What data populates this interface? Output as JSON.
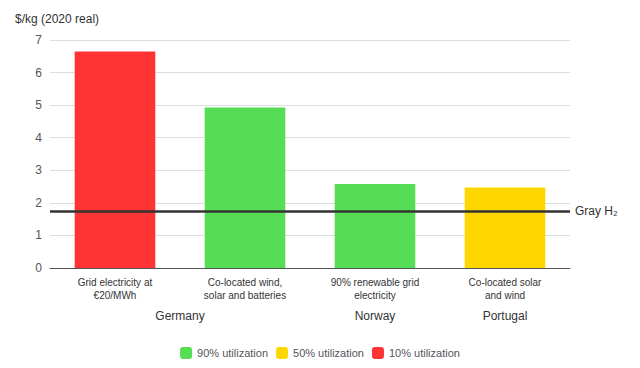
{
  "chart_data": {
    "type": "bar",
    "ylabel": "$/kg (2020 real)",
    "categories": [
      "Grid electricity at\n€20/MWh",
      "Co-located wind,\nsolar and batteries",
      "90% renewable grid\nelectricity",
      "Co-located solar\nand wind"
    ],
    "groups": [
      "Germany",
      "Germany",
      "Norway",
      "Portugal"
    ],
    "series": [
      {
        "name": "90% utilization",
        "color": "#55DD55",
        "values": [
          null,
          4.93,
          2.58,
          null
        ]
      },
      {
        "name": "50% utilization",
        "color": "#FFD700",
        "values": [
          null,
          null,
          null,
          2.47
        ]
      },
      {
        "name": "10% utilization",
        "color": "#FF3333",
        "values": [
          6.65,
          null,
          null,
          null
        ]
      }
    ],
    "reference_line": {
      "value": 1.75,
      "label": "Gray H₂"
    },
    "ylim": [
      0,
      7.0
    ],
    "yticks": [
      0,
      1.0,
      2.0,
      3.0,
      4.0,
      5.0,
      6.0,
      7.0
    ],
    "grid": true,
    "legend": "bottom"
  }
}
